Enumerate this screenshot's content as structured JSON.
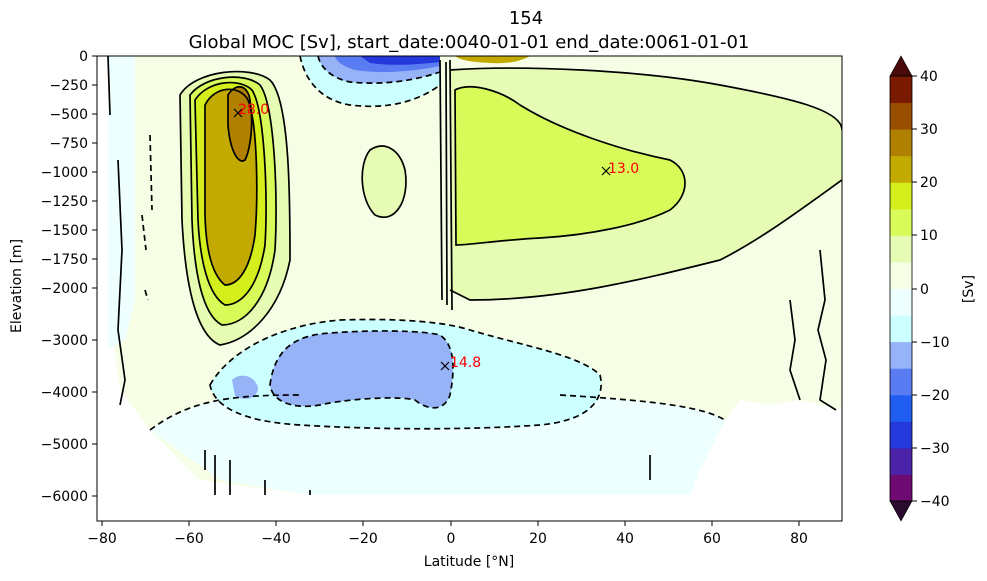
{
  "chart_data": {
    "type": "heatmap",
    "title_line1": "154",
    "title_line2": "Global MOC [Sv], start_date:0040-01-01 end_date:0061-01-01",
    "xlabel": "Latitude [°N]",
    "ylabel": "Elevation [m]",
    "colorbar_label": "[Sv]",
    "xlim": [
      -81,
      90
    ],
    "x_ticks": [
      -80,
      -60,
      -40,
      -20,
      0,
      20,
      40,
      60,
      80
    ],
    "y_ticks_upper": [
      0,
      -250,
      -500,
      -750,
      -1000,
      -1250,
      -1500,
      -1750,
      -2000
    ],
    "y_ticks_lower": [
      -2000,
      -3000,
      -4000,
      -5000,
      -6000
    ],
    "y_tick_labels": [
      "0",
      "−250",
      "−500",
      "−750",
      "−1000",
      "−1250",
      "−1500",
      "−1750",
      "−2000",
      "−3000",
      "−4000",
      "−5000",
      "−6000"
    ],
    "x_tick_labels": [
      "−80",
      "−60",
      "−40",
      "−20",
      "0",
      "20",
      "40",
      "60",
      "80"
    ],
    "cbar_tick_labels": [
      "40",
      "30",
      "20",
      "10",
      "0",
      "−10",
      "−20",
      "−30",
      "−40"
    ],
    "levels": [
      -40,
      -35,
      -30,
      -25,
      -20,
      -15,
      -10,
      -5,
      0,
      5,
      10,
      15,
      20,
      25,
      30,
      35,
      40
    ],
    "level_colors": [
      "#6e0a72",
      "#4a23a8",
      "#2438dc",
      "#1f5ef0",
      "#5a7cf3",
      "#97b3f8",
      "#ccffff",
      "#eeffff",
      "#f6ffe6",
      "#e6fcb4",
      "#d9fb5a",
      "#d3ee1a",
      "#c2aa00",
      "#b08000",
      "#9a4f00",
      "#7a1a00"
    ],
    "extend_low_color": "#2a0a2e",
    "extend_high_color": "#4a0a0a",
    "annotations": [
      {
        "lat": -49,
        "depth": -500,
        "label": "28.0"
      },
      {
        "lat": 36,
        "depth": -1000,
        "label": "13.0"
      },
      {
        "lat": -1.5,
        "depth": -3500,
        "label": "14.8"
      }
    ]
  }
}
